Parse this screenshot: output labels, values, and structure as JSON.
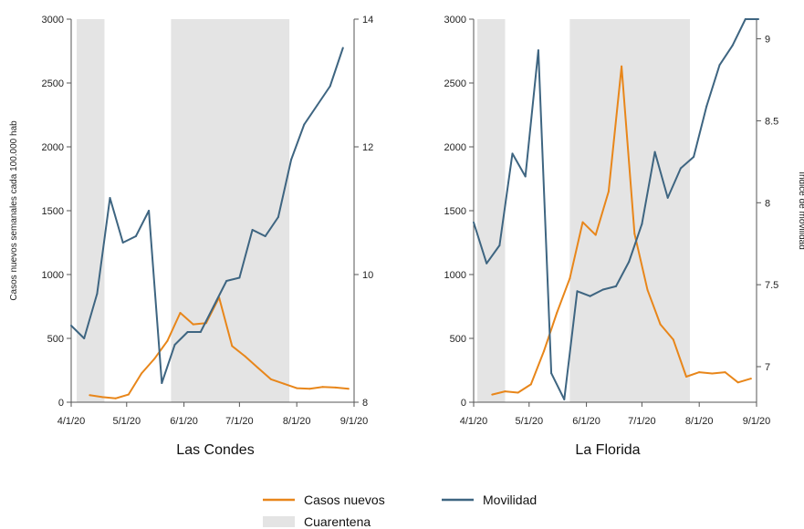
{
  "colors": {
    "cases": "#e8861a",
    "mobility": "#3e6581",
    "quarantine": "#e4e4e4",
    "axis": "#555555"
  },
  "legend": {
    "cases": "Casos nuevos",
    "mobility": "Movilidad",
    "quarantine": "Cuarentena"
  },
  "chart_data": [
    {
      "type": "line",
      "title": "Las Condes",
      "ylabel_left": "Casos nuevos semanales cada 100.000 hab",
      "ylabel_right": "",
      "x_ticks": [
        "4/1/20",
        "5/1/20",
        "6/1/20",
        "7/1/20",
        "8/1/20",
        "9/1/20"
      ],
      "xlim": [
        "2020-04-01",
        "2020-09-01"
      ],
      "ylim_left": [
        0,
        3000
      ],
      "ylim_right": [
        8,
        14
      ],
      "y_ticks_left": [
        "0",
        "500",
        "1000",
        "1500",
        "2000",
        "2500",
        "3000"
      ],
      "y_ticks_right": [
        "8",
        "10",
        "12",
        "14"
      ],
      "quarantine": [
        [
          "2020-04-04",
          "2020-04-19"
        ],
        [
          "2020-05-25",
          "2020-07-28"
        ]
      ],
      "series": [
        {
          "key": "cases",
          "x": [
            "2020-04-11",
            "2020-04-18",
            "2020-04-25",
            "2020-05-02",
            "2020-05-09",
            "2020-05-16",
            "2020-05-23",
            "2020-05-30",
            "2020-06-06",
            "2020-06-13",
            "2020-06-20",
            "2020-06-27",
            "2020-07-04",
            "2020-07-11",
            "2020-07-18",
            "2020-07-25",
            "2020-08-01",
            "2020-08-08",
            "2020-08-15",
            "2020-08-22",
            "2020-08-29"
          ],
          "y": [
            55,
            40,
            30,
            60,
            225,
            340,
            480,
            700,
            610,
            620,
            820,
            440,
            360,
            270,
            180,
            145,
            110,
            105,
            120,
            115,
            105
          ]
        },
        {
          "key": "mobility",
          "axis": "right",
          "x": [
            "2020-04-01",
            "2020-04-08",
            "2020-04-15",
            "2020-04-22",
            "2020-04-29",
            "2020-05-06",
            "2020-05-13",
            "2020-05-20",
            "2020-05-27",
            "2020-06-03",
            "2020-06-10",
            "2020-06-17",
            "2020-06-24",
            "2020-07-01",
            "2020-07-08",
            "2020-07-15",
            "2020-07-22",
            "2020-07-29",
            "2020-08-05",
            "2020-08-12",
            "2020-08-19",
            "2020-08-26"
          ],
          "y": [
            9.2,
            9.0,
            9.7,
            11.2,
            10.5,
            10.6,
            11.0,
            8.3,
            8.9,
            9.1,
            9.1,
            9.5,
            9.9,
            9.95,
            10.7,
            10.6,
            10.9,
            11.8,
            12.35,
            12.65,
            12.95,
            13.55
          ]
        }
      ]
    },
    {
      "type": "line",
      "title": "La Florida",
      "ylabel_left": "",
      "ylabel_right": "Indice de movilidad",
      "x_ticks": [
        "4/1/20",
        "5/1/20",
        "6/1/20",
        "7/1/20",
        "8/1/20",
        "9/1/20"
      ],
      "xlim": [
        "2020-04-01",
        "2020-09-01"
      ],
      "ylim_left": [
        0,
        3000
      ],
      "ylim_right": [
        6.783,
        9.12
      ],
      "y_ticks_left": [
        "0",
        "500",
        "1000",
        "1500",
        "2000",
        "2500",
        "3000"
      ],
      "y_ticks_right": [
        "7",
        "7.5",
        "8",
        "8.5",
        "9"
      ],
      "quarantine": [
        [
          "2020-04-03",
          "2020-04-18"
        ],
        [
          "2020-05-23",
          "2020-07-27"
        ]
      ],
      "series": [
        {
          "key": "cases",
          "x": [
            "2020-04-11",
            "2020-04-18",
            "2020-04-25",
            "2020-05-02",
            "2020-05-09",
            "2020-05-16",
            "2020-05-23",
            "2020-05-30",
            "2020-06-06",
            "2020-06-13",
            "2020-06-20",
            "2020-06-27",
            "2020-07-04",
            "2020-07-11",
            "2020-07-18",
            "2020-07-25",
            "2020-08-01",
            "2020-08-08",
            "2020-08-15",
            "2020-08-22",
            "2020-08-29"
          ],
          "y": [
            60,
            85,
            75,
            140,
            400,
            700,
            970,
            1410,
            1310,
            1650,
            2630,
            1320,
            880,
            610,
            490,
            200,
            235,
            225,
            235,
            155,
            185
          ]
        },
        {
          "key": "mobility",
          "axis": "right",
          "x": [
            "2020-04-01",
            "2020-04-08",
            "2020-04-15",
            "2020-04-22",
            "2020-04-29",
            "2020-05-06",
            "2020-05-13",
            "2020-05-20",
            "2020-05-27",
            "2020-06-03",
            "2020-06-10",
            "2020-06-17",
            "2020-06-24",
            "2020-07-01",
            "2020-07-08",
            "2020-07-15",
            "2020-07-22",
            "2020-07-29",
            "2020-08-05",
            "2020-08-12",
            "2020-08-19",
            "2020-08-26",
            "2020-09-02"
          ],
          "y": [
            7.88,
            7.63,
            7.74,
            8.3,
            8.16,
            8.93,
            6.96,
            6.8,
            7.46,
            7.43,
            7.47,
            7.49,
            7.64,
            7.87,
            8.31,
            8.03,
            8.21,
            8.28,
            8.59,
            8.84,
            8.96,
            9.12,
            9.12
          ]
        }
      ]
    }
  ]
}
